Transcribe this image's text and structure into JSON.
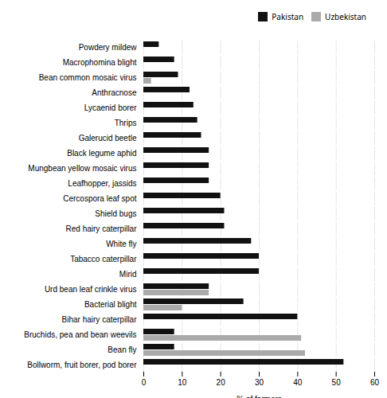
{
  "chart_data": {
    "type": "bar",
    "orientation": "horizontal",
    "xlabel": "% of farmers",
    "categories": [
      "Bollworm, fruit borer, pod borer",
      "Bean fly",
      "Bruchids, pea and bean weevils",
      "Bihar hairy caterpillar",
      "Bacterial blight",
      "Urd bean leaf crinkle virus",
      "Mirid",
      "Tabacco caterpillar",
      "White fly",
      "Red hairy caterpillar",
      "Shield bugs",
      "Cercospora leaf spot",
      "Leafhopper, jassids",
      "Mungbean yellow mosaic virus",
      "Black legume aphid",
      "Galerucid beetle",
      "Thrips",
      "Lycaenid borer",
      "Anthracnose",
      "Bean common mosaic virus",
      "Macrophomina blight",
      "Powdery mildew"
    ],
    "series": [
      {
        "name": "Pakistan",
        "color": "#111111",
        "values": [
          52,
          8,
          8,
          40,
          26,
          17,
          30,
          30,
          28,
          21,
          21,
          20,
          17,
          17,
          17,
          15,
          14,
          13,
          12,
          9,
          8,
          4
        ]
      },
      {
        "name": "Uzbekistan",
        "color": "#aaaaaa",
        "values": [
          0,
          42,
          41,
          0,
          10,
          17,
          0,
          0,
          0,
          0,
          0,
          0,
          0,
          0,
          0,
          0,
          0,
          0,
          0,
          2,
          0,
          0
        ]
      }
    ],
    "xlim": [
      0,
      60
    ],
    "xticks": [
      0,
      10,
      20,
      30,
      40,
      50,
      60
    ],
    "grid": true,
    "legend": "upper right"
  }
}
